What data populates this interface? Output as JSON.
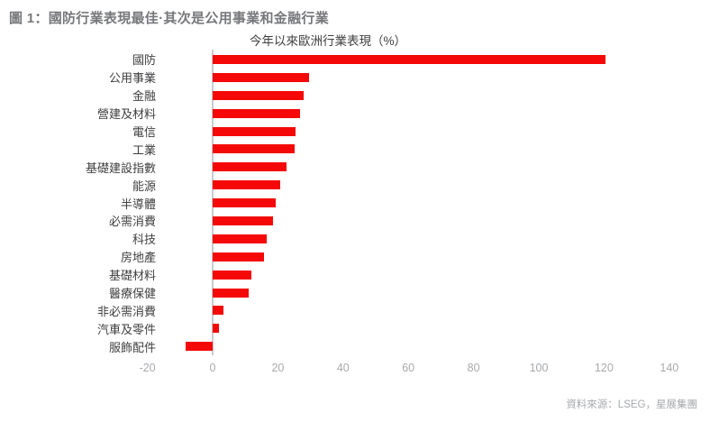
{
  "figure": {
    "title": "圖 1：國防行業表現最佳·其次是公用事業和金融行業"
  },
  "chart_data": {
    "type": "bar",
    "orientation": "horizontal",
    "title": "今年以來歐洲行業表現（%）",
    "categories": [
      "國防",
      "公用事業",
      "金融",
      "營建及材料",
      "電信",
      "工業",
      "基礎建設指數",
      "能源",
      "半導體",
      "必需消費",
      "科技",
      "房地產",
      "基礎材料",
      "醫療保健",
      "非必需消費",
      "汽車及零件",
      "服飾配件"
    ],
    "values": [
      120.5,
      29.6,
      27.9,
      26.9,
      25.5,
      25.0,
      22.5,
      20.7,
      19.2,
      18.6,
      16.6,
      15.8,
      12.0,
      11.0,
      3.4,
      2.0,
      -8.3
    ],
    "xlabel": "",
    "ylabel": "",
    "xticks": [
      -20,
      0,
      20,
      40,
      60,
      80,
      100,
      120,
      140
    ],
    "xlim": [
      -20,
      140
    ],
    "grid": false,
    "legend": false,
    "bar_color": "#F40808",
    "axis_line_color": "#C9CACC"
  },
  "source": {
    "text": "資料來源：LSEG，星展集團"
  },
  "colors": {
    "figure_title": "#77787B",
    "category_label": "#3F3F41",
    "tick_label": "#A7A9AC",
    "background": "#FFFFFF"
  }
}
